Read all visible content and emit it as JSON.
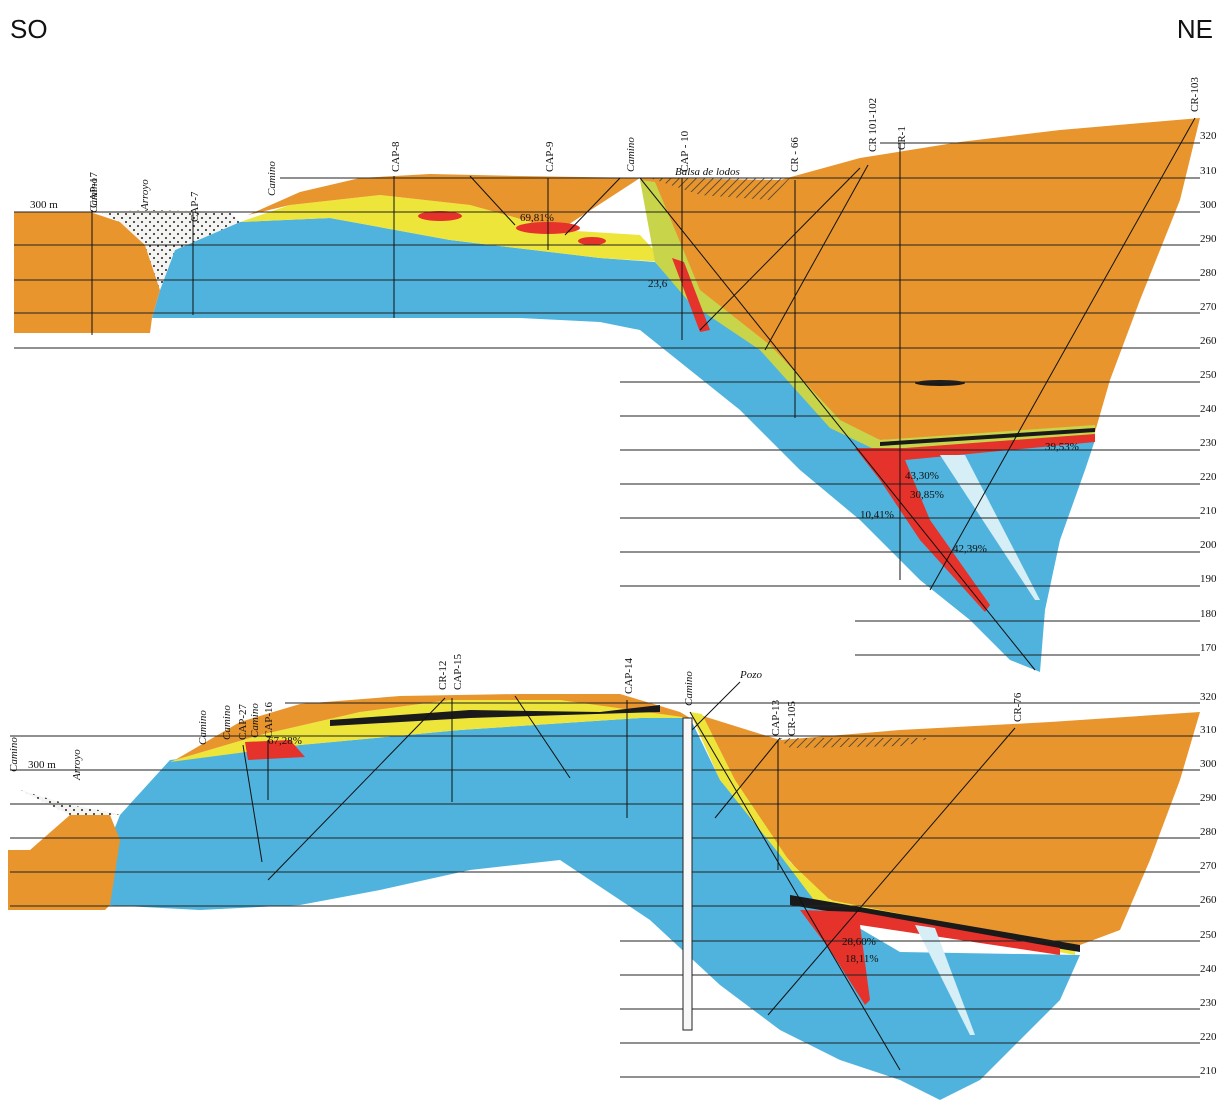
{
  "header": {
    "left_direction": "SO",
    "right_direction": "NE"
  },
  "colors": {
    "orange": "#e8952e",
    "blue": "#4fb3dd",
    "yellow": "#eee53a",
    "red": "#e5322a",
    "black": "#1a1a1a",
    "alluvium": "#f4f4f2"
  },
  "section_top": {
    "scale_label": "300 m",
    "elevations": [
      "320",
      "310",
      "300",
      "290",
      "280",
      "270",
      "260",
      "250",
      "240",
      "230",
      "220",
      "210",
      "200",
      "190",
      "180",
      "170"
    ],
    "drillholes": [
      "CAP-17",
      "CAP-7",
      "CAP-8",
      "CAP-9",
      "CAP - 10",
      "CR - 66",
      "CR 101-102",
      "CR-1",
      "CR-103"
    ],
    "place_labels": [
      "Camino",
      "Arroyo",
      "Camino",
      "Camino",
      "Balsa de lodos"
    ],
    "percentages": [
      "69,81%",
      "23,6",
      "43,30%",
      "30,85%",
      "10,41%",
      "42,39%",
      "39,53%"
    ]
  },
  "section_bottom": {
    "scale_label": "300 m",
    "elevations": [
      "320",
      "310",
      "300",
      "290",
      "280",
      "270",
      "260",
      "250",
      "240",
      "230",
      "220",
      "210"
    ],
    "drillholes": [
      "CAP-27",
      "CAP-16",
      "CR-12",
      "CAP-15",
      "CAP-14",
      "CAP-13",
      "CR-105",
      "CR-76"
    ],
    "place_labels": [
      "Camino",
      "Arroyo",
      "Camino",
      "Camino",
      "Camino",
      "Camino",
      "Pozo"
    ],
    "percentages": [
      "67,28%",
      "28,60%",
      "18,11%"
    ]
  }
}
